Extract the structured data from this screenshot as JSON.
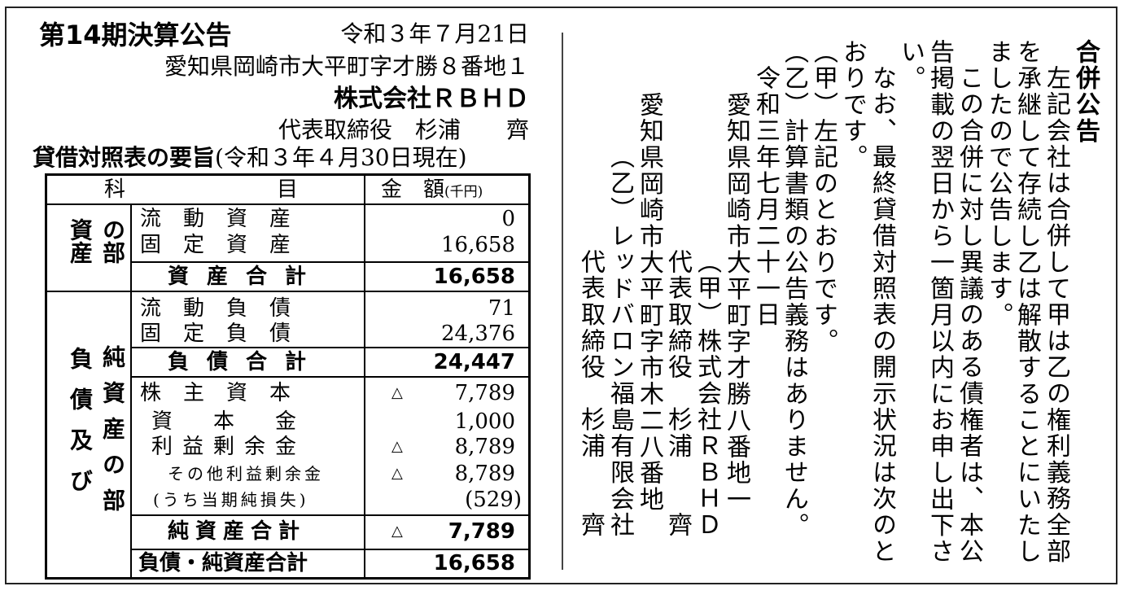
{
  "settlement": {
    "title": "第14期決算公告",
    "date": "令和３年７月21日",
    "address": "愛知県岡崎市大平町字才勝８番地１",
    "company": "株式会社ＲＢＨＤ",
    "representative": "代表取締役　杉浦　　齊",
    "bs_title": "貸借対照表の要旨",
    "bs_date": "(令和３年４月30日現在)"
  },
  "table": {
    "header": {
      "col1": "科",
      "col2": "目",
      "amount": "金　額",
      "unit": "(千円)"
    },
    "assets_label": [
      "資産",
      "の部"
    ],
    "liabilities_label": [
      "負債及び",
      "純資産の部"
    ],
    "triangle": "△",
    "rows": [
      {
        "name": "流動資産",
        "value": "0",
        "neg": false
      },
      {
        "name": "固定資産",
        "value": "16,658",
        "neg": false
      },
      {
        "name": "資産合計",
        "value": "16,658",
        "neg": false,
        "bold": true
      },
      {
        "name": "流動負債",
        "value": "71",
        "neg": false
      },
      {
        "name": "固定負債",
        "value": "24,376",
        "neg": false
      },
      {
        "name": "負債合計",
        "value": "24,447",
        "neg": false,
        "bold": true
      },
      {
        "name": "株主資本",
        "value": "7,789",
        "neg": true
      },
      {
        "name": "資本金",
        "value": "1,000",
        "neg": false
      },
      {
        "name": "利益剰余金",
        "value": "8,789",
        "neg": true
      },
      {
        "name": "その他利益剰余金",
        "value": "8,789",
        "neg": true
      },
      {
        "name": "(うち当期純損失)",
        "value": "(529)",
        "neg": false
      },
      {
        "name": "純資産合計",
        "value": "7,789",
        "neg": true,
        "bold": true
      },
      {
        "name": "負債・純資産合計",
        "value": "16,658",
        "neg": false,
        "bold": true
      }
    ]
  },
  "merger_notice": {
    "title": "合併公告",
    "columns": [
      "左記会社は合併して甲は乙の権利義務全部",
      "を承継して存続し乙は解散することにいたし",
      "ましたので公告します。",
      "この合併に対し異議のある債権者は、本公",
      "告掲載の翌日から一箇月以内にお申し出下さ",
      "い。",
      "なお、最終貸借対照表の開示状況は次のと",
      "おりです。",
      "（甲）左記のとおりです。",
      "（乙）計算書類の公告義務はありません。",
      "令和三年七月二十一日",
      "愛知県岡崎市大平町字才勝八番地一",
      "（甲）株式会社ＲＢＨＤ",
      "代表取締役　杉浦　　齊",
      "愛知県岡崎市大平町字市木二八番地",
      "（乙）レッドバロン福島有限会社",
      "代表取締役　杉浦　　齊"
    ]
  }
}
